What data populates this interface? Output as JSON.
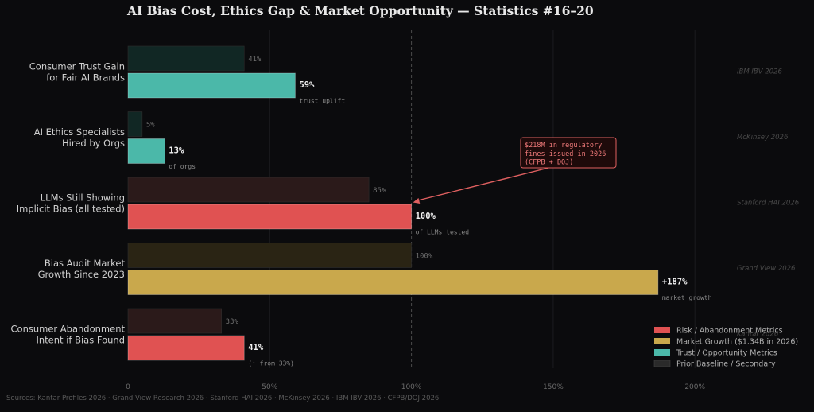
{
  "chart_data": {
    "type": "bar",
    "orientation": "horizontal",
    "title": "AI Bias Cost, Ethics Gap & Market Opportunity — Statistics #16–20",
    "xlim": [
      0,
      220
    ],
    "xticks": [
      0,
      50,
      100,
      150,
      200
    ],
    "xtick_labels": [
      "0",
      "50%",
      "100%",
      "150%",
      "200%"
    ],
    "grid": true,
    "reference_line": 100,
    "categories": [
      {
        "label_lines": [
          "Consumer Trust Gain",
          "for Fair AI Brands"
        ],
        "baseline": 41,
        "baseline_label": "41%",
        "value": 59,
        "value_label": "59%",
        "sublabel": "trust uplift",
        "kind": "trust",
        "source": "IBM IBV 2026"
      },
      {
        "label_lines": [
          "AI Ethics Specialists",
          "Hired by Orgs"
        ],
        "baseline": 5,
        "baseline_label": "5%",
        "value": 13,
        "value_label": "13%",
        "sublabel": "of orgs",
        "kind": "trust",
        "source": "McKinsey 2026"
      },
      {
        "label_lines": [
          "LLMs Still Showing",
          "Implicit Bias (all tested)"
        ],
        "baseline": 85,
        "baseline_label": "85%",
        "value": 100,
        "value_label": "100%",
        "sublabel": "of LLMs tested",
        "kind": "risk",
        "source": "Stanford HAI 2026"
      },
      {
        "label_lines": [
          "Bias Audit Market",
          "Growth Since 2023"
        ],
        "baseline": 100,
        "baseline_label": "100%",
        "value": 187,
        "value_label": "+187%",
        "sublabel": "market growth",
        "kind": "market",
        "source": "Grand View 2026"
      },
      {
        "label_lines": [
          "Consumer Abandonment",
          "Intent if Bias Found"
        ],
        "baseline": 33,
        "baseline_label": "33%",
        "value": 41,
        "value_label": "41%",
        "sublabel": "(↑ from 33%)",
        "kind": "risk",
        "source": "Kantar 2026"
      }
    ],
    "annotation": {
      "lines": [
        "$218M in regulatory",
        "fines issued in 2026",
        "(CFPB + DOJ)"
      ],
      "target_category": 2
    },
    "legend": {
      "placement": "bottom-right",
      "items": [
        {
          "label": "Risk / Abandonment Metrics",
          "kind": "risk"
        },
        {
          "label": "Market Growth ($1.34B in 2026)",
          "kind": "market"
        },
        {
          "label": "Trust / Opportunity Metrics",
          "kind": "trust"
        },
        {
          "label": "Prior Baseline / Secondary",
          "kind": "baseline"
        }
      ]
    },
    "footer": "Sources: Kantar Profiles 2026 · Grand View Research 2026 · Stanford HAI 2026 · McKinsey 2026 · IBM IBV 2026 · CFPB/DOJ 2026",
    "colors": {
      "risk": "#e05252",
      "market": "#c9a84c",
      "trust": "#4bb8a9",
      "baseline_risk": "#2b1a1a",
      "baseline_market": "#2a2414",
      "baseline_trust": "#112724",
      "baseline_legend": "#2a2a2a",
      "annotation": "#e06060",
      "annotation_bg": "#1e0a0a"
    }
  }
}
